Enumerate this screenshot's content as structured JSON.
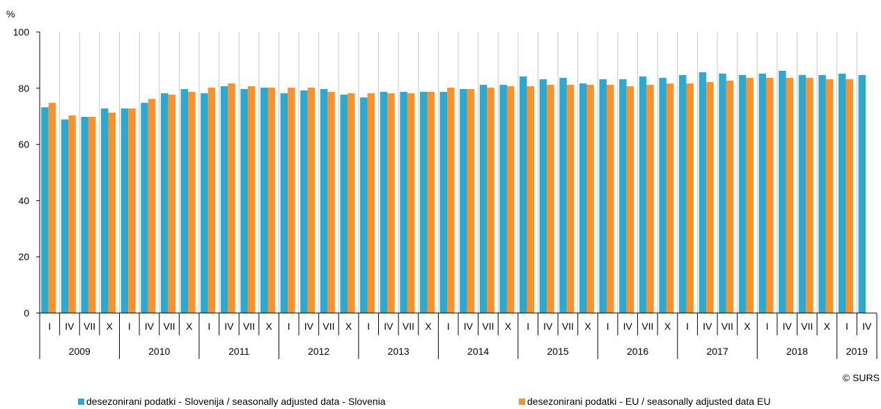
{
  "chart_data": {
    "type": "bar",
    "unit_label": "%",
    "ylim": [
      0,
      100
    ],
    "yticks": [
      0,
      20,
      40,
      60,
      80,
      100
    ],
    "grid": "vertical",
    "legend_position": "bottom",
    "quarters": [
      "I",
      "IV",
      "VII",
      "X",
      "I",
      "IV",
      "VII",
      "X",
      "I",
      "IV",
      "VII",
      "X",
      "I",
      "IV",
      "VII",
      "X",
      "I",
      "IV",
      "VII",
      "X",
      "I",
      "IV",
      "VII",
      "X",
      "I",
      "IV",
      "VII",
      "X",
      "I",
      "IV",
      "VII",
      "X",
      "I",
      "IV",
      "VII",
      "X",
      "I",
      "IV",
      "VII",
      "X",
      "I",
      "IV"
    ],
    "years": [
      {
        "label": "2009",
        "span": 4
      },
      {
        "label": "2010",
        "span": 4
      },
      {
        "label": "2011",
        "span": 4
      },
      {
        "label": "2012",
        "span": 4
      },
      {
        "label": "2013",
        "span": 4
      },
      {
        "label": "2014",
        "span": 4
      },
      {
        "label": "2015",
        "span": 4
      },
      {
        "label": "2016",
        "span": 4
      },
      {
        "label": "2017",
        "span": 4
      },
      {
        "label": "2018",
        "span": 4
      },
      {
        "label": "2019",
        "span": 2
      }
    ],
    "series": [
      {
        "name": "desezonirani podatki - Slovenija / seasonally adjusted data - Slovenia",
        "color": "#2fa8d0",
        "values": [
          73.2,
          68.9,
          69.8,
          72.8,
          72.8,
          74.8,
          78.2,
          79.7,
          78.2,
          80.7,
          79.7,
          80.2,
          78.2,
          79.2,
          79.7,
          77.7,
          76.7,
          78.7,
          78.7,
          78.7,
          78.7,
          79.7,
          81.2,
          81.2,
          84.2,
          83.2,
          83.7,
          81.7,
          83.2,
          83.2,
          84.2,
          83.7,
          84.7,
          85.7,
          85.2,
          84.7,
          85.2,
          86.2,
          84.7,
          84.7,
          85.2,
          84.7
        ]
      },
      {
        "name": "desezonirani podatki - EU / seasonally adjusted data EU",
        "color": "#f7922e",
        "values": [
          74.8,
          70.3,
          69.8,
          71.3,
          72.8,
          76.2,
          77.7,
          78.7,
          80.2,
          81.7,
          80.7,
          80.2,
          80.2,
          80.2,
          78.7,
          78.2,
          78.2,
          78.2,
          78.2,
          78.7,
          80.2,
          79.7,
          80.2,
          80.7,
          80.7,
          81.2,
          81.2,
          81.2,
          81.2,
          80.7,
          81.2,
          81.7,
          81.7,
          82.2,
          82.7,
          83.7,
          83.7,
          83.7,
          83.7,
          83.2,
          83.2,
          null
        ]
      }
    ]
  },
  "credit": "© SURS"
}
